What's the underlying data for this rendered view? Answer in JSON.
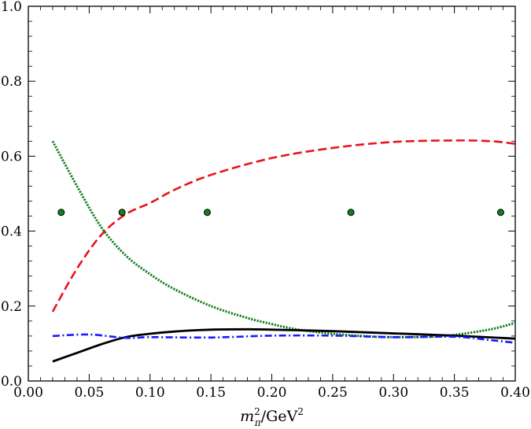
{
  "chart_data": {
    "type": "line",
    "xlabel": {
      "base": "m",
      "sup": "2",
      "sub": "π",
      "rest": "/GeV",
      "rest_sup": "2"
    },
    "ylabel": "",
    "xlim": [
      0.0,
      0.4
    ],
    "ylim": [
      0.0,
      1.0
    ],
    "x_ticks": [
      0.0,
      0.05,
      0.1,
      0.15,
      0.2,
      0.25,
      0.3,
      0.35,
      0.4
    ],
    "x_tick_labels": [
      "0.00",
      "0.05",
      "0.10",
      "0.15",
      "0.20",
      "0.25",
      "0.30",
      "0.35",
      "0.40"
    ],
    "y_ticks": [
      0.0,
      0.2,
      0.4,
      0.6,
      0.8,
      1.0
    ],
    "y_tick_labels": [
      "0.0",
      "0.2",
      "0.4",
      "0.6",
      "0.8",
      "1.0"
    ],
    "grid": false,
    "series": [
      {
        "style": "dashed",
        "color": "#e8141b",
        "x": [
          0.02,
          0.04,
          0.06,
          0.08,
          0.1,
          0.12,
          0.15,
          0.2,
          0.25,
          0.3,
          0.35,
          0.38,
          0.4
        ],
        "y": [
          0.185,
          0.3,
          0.39,
          0.445,
          0.475,
          0.51,
          0.55,
          0.595,
          0.622,
          0.638,
          0.642,
          0.64,
          0.633
        ]
      },
      {
        "style": "dotted",
        "color": "#12801b",
        "x": [
          0.02,
          0.04,
          0.06,
          0.08,
          0.1,
          0.12,
          0.15,
          0.18,
          0.2,
          0.22,
          0.25,
          0.28,
          0.3,
          0.33,
          0.35,
          0.38,
          0.4
        ],
        "y": [
          0.64,
          0.52,
          0.41,
          0.335,
          0.285,
          0.245,
          0.2,
          0.168,
          0.152,
          0.138,
          0.126,
          0.119,
          0.117,
          0.118,
          0.123,
          0.138,
          0.155
        ]
      },
      {
        "style": "solid",
        "color": "#000000",
        "x": [
          0.02,
          0.04,
          0.06,
          0.08,
          0.1,
          0.12,
          0.15,
          0.18,
          0.2,
          0.25,
          0.3,
          0.35,
          0.4
        ],
        "y": [
          0.052,
          0.075,
          0.098,
          0.117,
          0.126,
          0.132,
          0.137,
          0.138,
          0.137,
          0.133,
          0.127,
          0.121,
          0.113
        ]
      },
      {
        "style": "dashdot",
        "color": "#1a1aff",
        "x": [
          0.02,
          0.05,
          0.08,
          0.1,
          0.15,
          0.2,
          0.25,
          0.3,
          0.35,
          0.38,
          0.4
        ],
        "y": [
          0.12,
          0.124,
          0.115,
          0.117,
          0.116,
          0.121,
          0.121,
          0.117,
          0.118,
          0.109,
          0.102
        ]
      },
      {
        "style": "markers",
        "color": "#12801b",
        "x": [
          0.027,
          0.077,
          0.147,
          0.265,
          0.388
        ],
        "y": [
          0.45,
          0.45,
          0.45,
          0.45,
          0.45
        ]
      }
    ]
  }
}
